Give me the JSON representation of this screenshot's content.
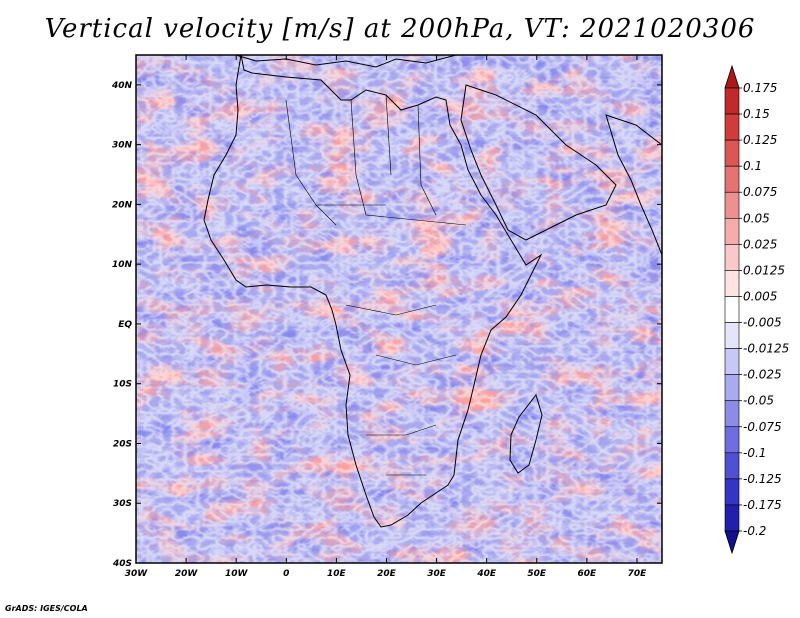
{
  "title": "Vertical velocity [m/s] at 200hPa, VT: 2021020306",
  "credit": "GrADS: IGES/COLA",
  "map": {
    "lon_range": [
      -30,
      75
    ],
    "lat_range": [
      -40,
      45
    ],
    "lat_ticks": [
      "40N",
      "30N",
      "20N",
      "10N",
      "EQ",
      "10S",
      "20S",
      "30S",
      "40S"
    ],
    "lon_ticks": [
      "30W",
      "20W",
      "10W",
      "0",
      "10E",
      "20E",
      "30E",
      "40E",
      "50E",
      "60E",
      "70E"
    ]
  },
  "colorbar": {
    "labels": [
      "0.175",
      "0.15",
      "0.125",
      "0.1",
      "0.075",
      "0.05",
      "0.025",
      "0.0125",
      "0.005",
      "-0.005",
      "-0.0125",
      "-0.025",
      "-0.05",
      "-0.075",
      "-0.1",
      "-0.125",
      "-0.175",
      "-0.2"
    ],
    "colors": [
      "#b01818",
      "#c02a2a",
      "#cf3c3c",
      "#dc5656",
      "#e67272",
      "#ee9090",
      "#f4acac",
      "#f9c8c8",
      "#fde4e4",
      "#ffffff",
      "#e4e4fb",
      "#c8c8f6",
      "#aaaaf0",
      "#8c8ce8",
      "#6e6ee0",
      "#5050d4",
      "#3535c4",
      "#2020ac",
      "#101090"
    ]
  }
}
